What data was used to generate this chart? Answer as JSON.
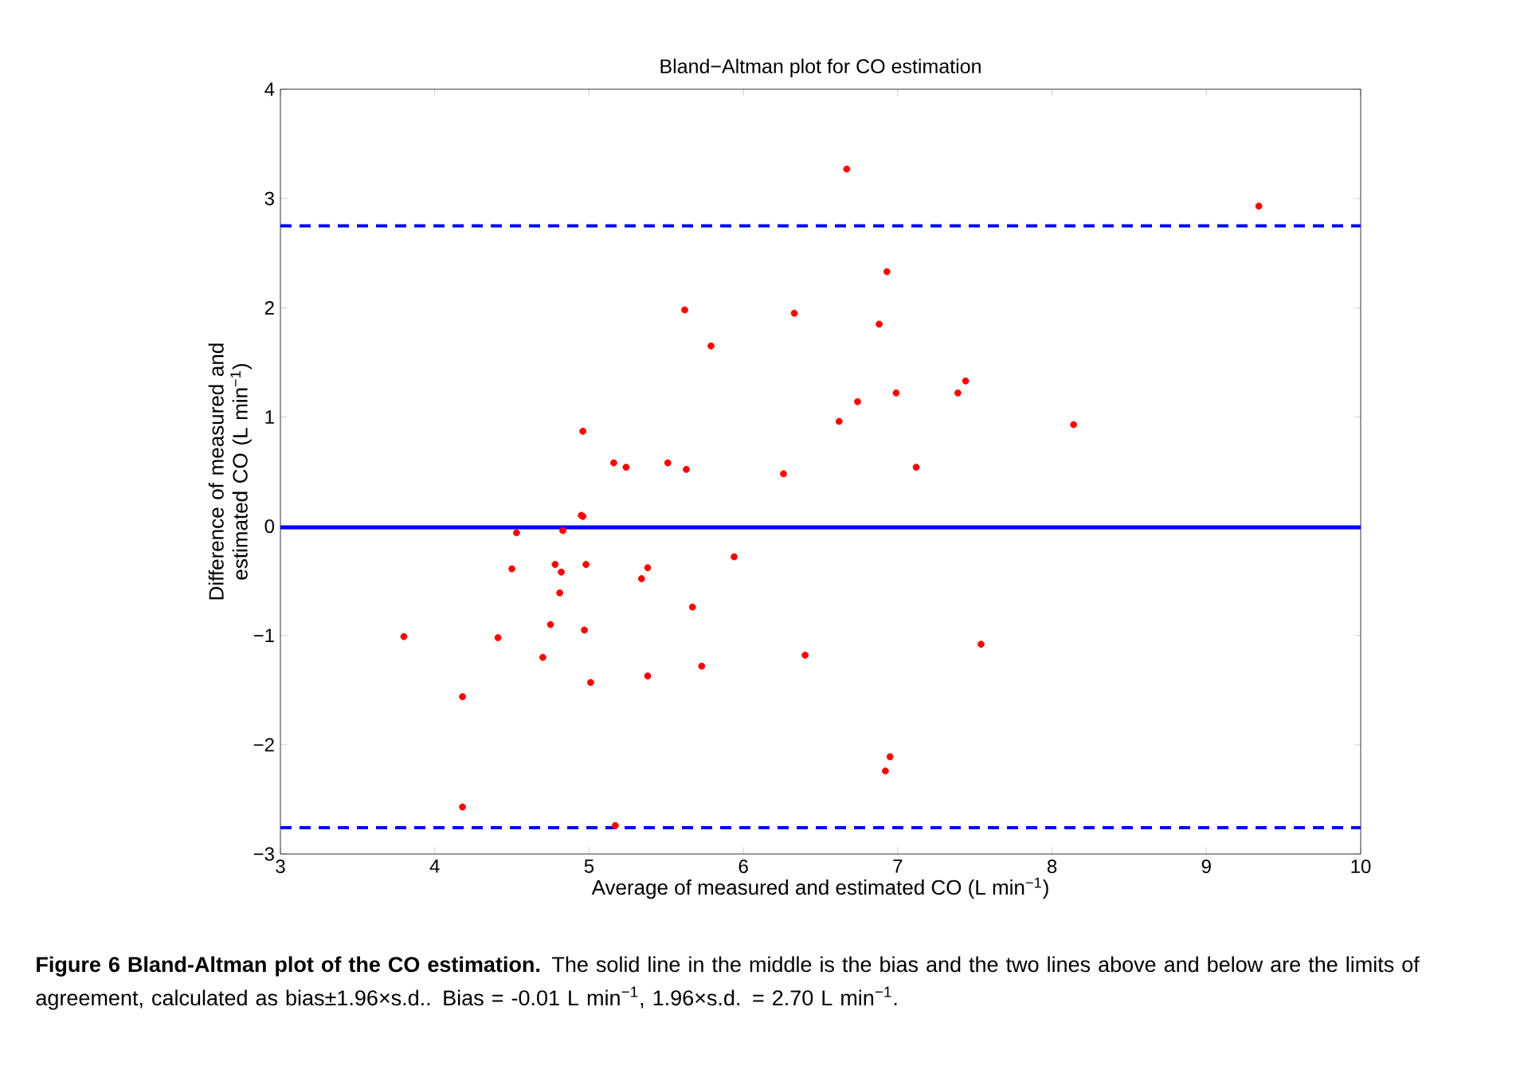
{
  "chart_data": {
    "type": "scatter",
    "title": "Bland−Altman plot for CO estimation",
    "xlabel": "Average of measured and estimated CO (L min$^{−1}$)",
    "ylabel": "Difference of measured and estimated CO (L min$^{−1}$)",
    "xlim": [
      3,
      10
    ],
    "ylim": [
      -3,
      4
    ],
    "xticks": [
      3,
      4,
      5,
      6,
      7,
      8,
      9,
      10
    ],
    "yticks": [
      {
        "value": -3,
        "label": "−3"
      },
      {
        "value": -2,
        "label": "−2"
      },
      {
        "value": -1,
        "label": "−1"
      },
      0,
      1,
      2,
      3,
      4
    ],
    "marker": "circle",
    "grid": false,
    "legend": false,
    "series": [
      {
        "color": "#ff0000",
        "x": [
          3.8,
          4.18,
          4.18,
          4.41,
          4.5,
          4.53,
          4.7,
          4.75,
          4.78,
          4.81,
          4.82,
          4.83,
          4.95,
          4.96,
          4.96,
          4.97,
          4.98,
          5.01,
          5.16,
          5.17,
          5.24,
          5.34,
          5.38,
          5.38,
          5.51,
          5.62,
          5.63,
          5.67,
          5.73,
          5.79,
          5.94,
          6.26,
          6.33,
          6.4,
          6.62,
          6.67,
          6.74,
          6.88,
          6.92,
          6.93,
          6.95,
          6.99,
          7.12,
          7.39,
          7.44,
          7.54,
          8.14,
          9.34
        ],
        "values": [
          -1.01,
          -1.56,
          -2.57,
          -1.02,
          -0.39,
          -0.06,
          -1.2,
          -0.9,
          -0.35,
          -0.61,
          -0.42,
          -0.04,
          0.1,
          0.09,
          0.87,
          -0.95,
          -0.35,
          -1.43,
          0.58,
          -2.74,
          0.54,
          -0.48,
          -0.38,
          -1.37,
          0.58,
          1.98,
          0.52,
          -0.74,
          -1.28,
          1.65,
          -0.28,
          0.48,
          1.95,
          -1.18,
          0.96,
          3.27,
          1.14,
          1.85,
          -2.24,
          2.33,
          -2.11,
          1.22,
          0.54,
          1.22,
          1.33,
          -1.08,
          0.93,
          2.93
        ]
      }
    ],
    "ref_lines": [
      {
        "axis": "y",
        "value": -0.01,
        "color": "#0000ff",
        "line_style": "solid"
      },
      {
        "axis": "y",
        "value": 2.75,
        "color": "#0000ff",
        "line_style": "dashed"
      },
      {
        "axis": "y",
        "value": -2.76,
        "color": "#0000ff",
        "line_style": "dashed"
      }
    ],
    "annotations": [
      "**Figure 6 Bland-Altman plot of the CO estimation.** The solid line in the middle is the bias and the two lines above and below are the limits of agreement, calculated as bias±1.96×s.d.. Bias = -0.01 L min$^{−1}$, 1.96×s.d. = 2.70 L min$^{−1}$."
    ]
  }
}
